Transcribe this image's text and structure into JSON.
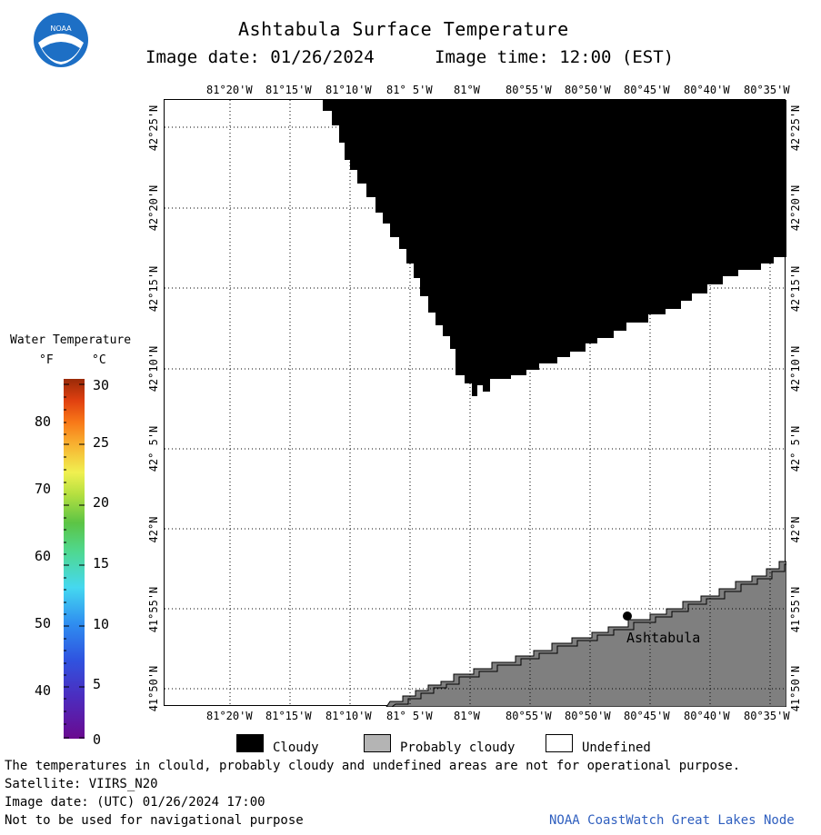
{
  "header": {
    "title": "Ashtabula Surface Temperature",
    "image_date_label": "Image date: 01/26/2024",
    "image_time_label": "Image time: 12:00 (EST)"
  },
  "logo": {
    "text": "NOAA"
  },
  "map": {
    "top_lon_labels": [
      "81°20'W",
      "81°15'W",
      "81°10'W",
      "81° 5'W",
      "81°W",
      "80°55'W",
      "80°50'W",
      "80°45'W",
      "80°40'W",
      "80°35'W"
    ],
    "bottom_lon_labels": [
      "81°20'W",
      "81°15'W",
      "81°10'W",
      "81° 5'W",
      "81°W",
      "80°55'W",
      "80°50'W",
      "80°45'W",
      "80°40'W",
      "80°35'W"
    ],
    "lat_labels": [
      "42°25'N",
      "42°20'N",
      "42°15'N",
      "42°10'N",
      "42° 5'N",
      "42°N",
      "41°55'N",
      "41°50'N"
    ],
    "place_label": "Ashtabula"
  },
  "colorbar": {
    "title": "Water Temperature",
    "unit_f": "°F",
    "unit_c": "°C",
    "f_ticks": [
      "80",
      "70",
      "60",
      "50",
      "40"
    ],
    "c_ticks": [
      "30",
      "25",
      "20",
      "15",
      "10",
      "5",
      "0"
    ]
  },
  "legend": {
    "cloudy": "Cloudy",
    "probably_cloudy": "Probably cloudy",
    "undefined": "Undefined"
  },
  "footer": {
    "line1": "The temperatures in clould, probably cloudy and undefined areas are not for operational purpose.",
    "line2": "Satellite: VIIRS_N20",
    "line3": "Image date: (UTC) 01/26/2024  17:00",
    "line4": "Not to be used for navigational purpose",
    "credit": "NOAA CoastWatch Great Lakes Node"
  },
  "colors": {
    "cloudy": "#000000",
    "probably_cloudy": "#b4b4b4",
    "land": "#7f7f7f",
    "undefined": "#ffffff"
  }
}
